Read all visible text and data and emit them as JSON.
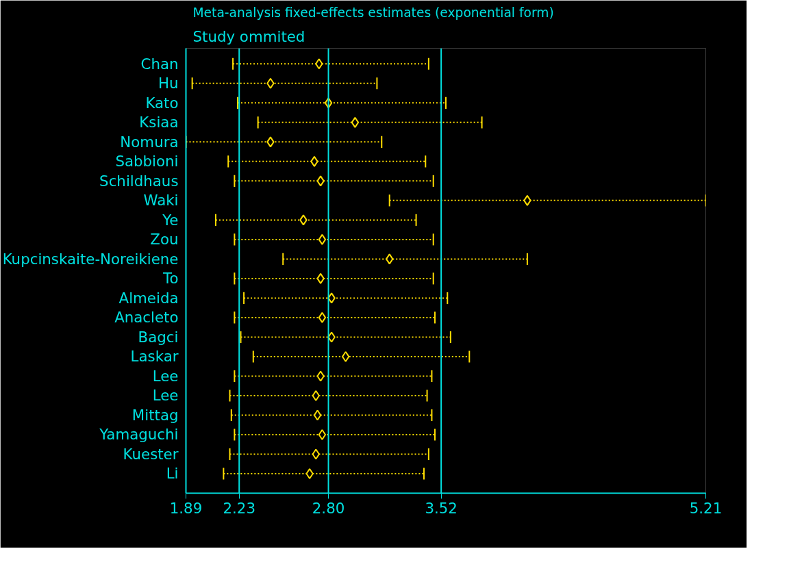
{
  "chart_data": {
    "type": "scatter",
    "orientation": "horizontal",
    "title": "Meta-analysis fixed-effects estimates (exponential form)",
    "subtitle": "Study ommited",
    "categories": [
      "Chan",
      "Hu",
      "Kato",
      "Ksiaa",
      "Nomura",
      "Sabbioni",
      "Schildhaus",
      "Waki",
      "Ye",
      "Zou",
      "Kupcinskaite-Noreikiene",
      "To",
      "Almeida",
      "Anacleto",
      "Bagci",
      "Laskar",
      "Lee",
      "Lee",
      "Mittag",
      "Yamaguchi",
      "Kuester",
      "Li"
    ],
    "series": [
      {
        "color": "#ffdd00",
        "values": [
          2.74,
          2.43,
          2.8,
          2.97,
          2.43,
          2.71,
          2.75,
          4.07,
          2.64,
          2.76,
          3.19,
          2.75,
          2.82,
          2.76,
          2.82,
          2.91,
          2.75,
          2.72,
          2.73,
          2.76,
          2.72,
          2.68
        ],
        "errors": [
          [
            2.19,
            3.44
          ],
          [
            1.93,
            3.11
          ],
          [
            2.22,
            3.55
          ],
          [
            2.35,
            3.78
          ],
          [
            1.89,
            3.14
          ],
          [
            2.16,
            3.42
          ],
          [
            2.2,
            3.47
          ],
          [
            3.19,
            5.21
          ],
          [
            2.08,
            3.36
          ],
          [
            2.2,
            3.47
          ],
          [
            2.51,
            4.07
          ],
          [
            2.2,
            3.47
          ],
          [
            2.26,
            3.56
          ],
          [
            2.2,
            3.48
          ],
          [
            2.24,
            3.58
          ],
          [
            2.32,
            3.7
          ],
          [
            2.2,
            3.46
          ],
          [
            2.17,
            3.43
          ],
          [
            2.18,
            3.46
          ],
          [
            2.2,
            3.48
          ],
          [
            2.17,
            3.44
          ],
          [
            2.13,
            3.41
          ]
        ]
      }
    ],
    "xlim": [
      1.89,
      5.21
    ],
    "xticks": [
      1.89,
      2.23,
      {
        "value": 2.8,
        "label": "2.80"
      },
      3.52,
      5.21
    ],
    "ref_lines": [
      {
        "axis": "x",
        "value": 2.23,
        "color": "#00e0e0"
      },
      {
        "axis": "x",
        "value": 2.8,
        "color": "#00e0e0"
      },
      {
        "axis": "x",
        "value": 3.52,
        "color": "#00e0e0"
      }
    ],
    "grid": false,
    "marker": "diamond",
    "line_style": "dotted"
  }
}
